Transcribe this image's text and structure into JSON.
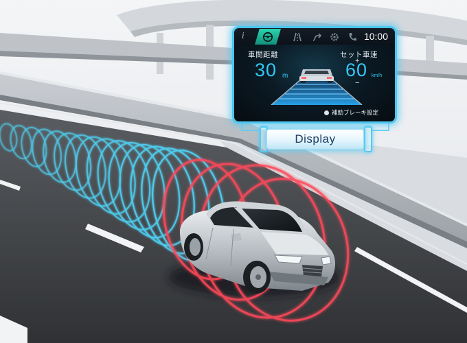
{
  "meter_display": {
    "time": "10:00",
    "following_distance_label": "車間距離",
    "following_distance_value": "30",
    "following_distance_unit": "m",
    "set_speed_label": "セット車速",
    "set_speed_value": "60",
    "set_speed_unit": "km/h",
    "plus_symbol": "+",
    "minus_symbol": "−",
    "info_glyph": "i",
    "footer_text": "補助ブレーキ設定"
  },
  "display_tag": {
    "label": "Display"
  },
  "colors": {
    "radar_cyan": "#4fd3f5",
    "radar_red": "#ff4a5a",
    "meter_accent": "#33c8f5",
    "tab_active": "#1fc0a0"
  },
  "icons": {
    "tab_1": "steering-wheel-icon",
    "tab_2": "lane-icon",
    "tab_3": "route-icon",
    "tab_4": "gear-icon",
    "tab_5": "phone-icon"
  }
}
